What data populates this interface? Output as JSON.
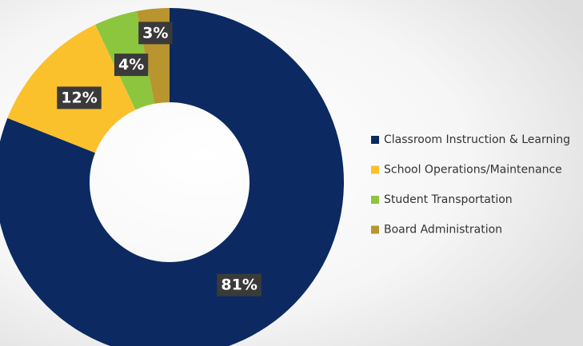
{
  "chart_data": {
    "type": "donut",
    "categories": [
      "Classroom Instruction & Learning",
      "School Operations/Maintenance",
      "Student Transportation",
      "Board Administration"
    ],
    "values": [
      81,
      12,
      4,
      3
    ],
    "value_labels": [
      "81%",
      "12%",
      "4%",
      "3%"
    ],
    "colors": [
      "#0c2a61",
      "#fbc12d",
      "#8cc63e",
      "#b8952f"
    ],
    "legend": "right"
  }
}
